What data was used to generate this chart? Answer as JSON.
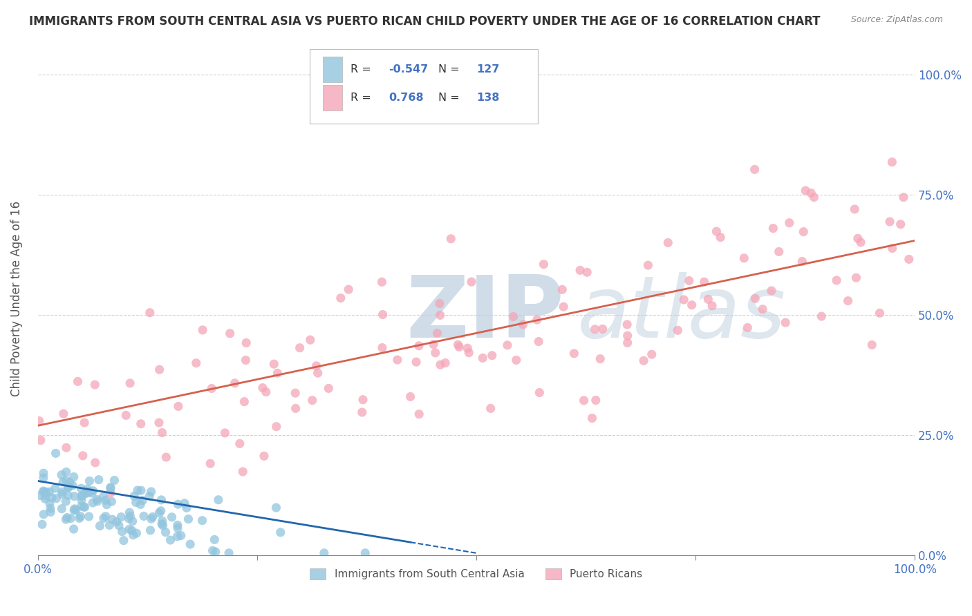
{
  "title": "IMMIGRANTS FROM SOUTH CENTRAL ASIA VS PUERTO RICAN CHILD POVERTY UNDER THE AGE OF 16 CORRELATION CHART",
  "source": "Source: ZipAtlas.com",
  "ylabel": "Child Poverty Under the Age of 16",
  "blue_R": -0.547,
  "blue_N": 127,
  "pink_R": 0.768,
  "pink_N": 138,
  "blue_label": "Immigrants from South Central Asia",
  "pink_label": "Puerto Ricans",
  "blue_color": "#92c5de",
  "pink_color": "#f4a6b8",
  "blue_line_color": "#2166ac",
  "pink_line_color": "#d6604d",
  "watermark_color": "#d0dce8",
  "xlim": [
    0.0,
    1.0
  ],
  "ylim": [
    0.0,
    1.07
  ],
  "yticks": [
    0.0,
    0.25,
    0.5,
    0.75,
    1.0
  ],
  "yticklabels": [
    "0.0%",
    "25.0%",
    "50.0%",
    "75.0%",
    "100.0%"
  ],
  "background_color": "#ffffff",
  "grid_color": "#cccccc",
  "title_color": "#333333",
  "axis_label_color": "#555555",
  "tick_label_color": "#4472c4",
  "blue_trend_x0": 0.0,
  "blue_trend_y0": 0.155,
  "blue_trend_x1": 0.5,
  "blue_trend_y1": 0.005,
  "pink_trend_x0": 0.0,
  "pink_trend_y0": 0.27,
  "pink_trend_x1": 1.0,
  "pink_trend_y1": 0.655
}
